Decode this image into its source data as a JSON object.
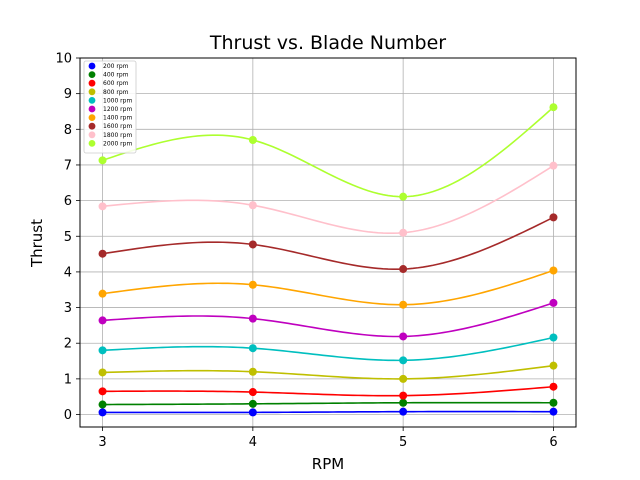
{
  "chart_data": {
    "type": "line",
    "title": "Thrust vs. Blade Number",
    "xlabel": "RPM",
    "ylabel": "Thrust",
    "x": [
      3,
      4,
      5,
      6
    ],
    "x_ticks": [
      "3",
      "4",
      "5",
      "6"
    ],
    "xlim": [
      2.85,
      6.15
    ],
    "ylim": [
      -0.35,
      10
    ],
    "y_ticks": [
      "0",
      "1",
      "2",
      "3",
      "4",
      "5",
      "6",
      "7",
      "8",
      "9",
      "10"
    ],
    "grid": true,
    "legend_position": "top-left",
    "smooth": true,
    "series": [
      {
        "name": "200 rpm",
        "color": "#0000ff",
        "values": [
          0.06,
          0.06,
          0.08,
          0.08
        ]
      },
      {
        "name": "400 rpm",
        "color": "#008000",
        "values": [
          0.28,
          0.3,
          0.33,
          0.33
        ]
      },
      {
        "name": "600 rpm",
        "color": "#ff0000",
        "values": [
          0.65,
          0.63,
          0.53,
          0.78
        ]
      },
      {
        "name": "800 rpm",
        "color": "#bfbf00",
        "values": [
          1.18,
          1.2,
          1.0,
          1.37
        ]
      },
      {
        "name": "1000 rpm",
        "color": "#00bfbf",
        "values": [
          1.8,
          1.86,
          1.52,
          2.16
        ]
      },
      {
        "name": "1200 rpm",
        "color": "#bf00bf",
        "values": [
          2.64,
          2.69,
          2.19,
          3.13
        ]
      },
      {
        "name": "1400 rpm",
        "color": "#ffa500",
        "values": [
          3.39,
          3.64,
          3.08,
          4.04
        ]
      },
      {
        "name": "1600 rpm",
        "color": "#a52a2a",
        "values": [
          4.51,
          4.77,
          4.08,
          5.53
        ]
      },
      {
        "name": "1800 rpm",
        "color": "#ffc0cb",
        "values": [
          5.84,
          5.87,
          5.1,
          6.98
        ]
      },
      {
        "name": "2000 rpm",
        "color": "#adff2f",
        "values": [
          7.13,
          7.7,
          6.11,
          8.62
        ]
      }
    ]
  }
}
